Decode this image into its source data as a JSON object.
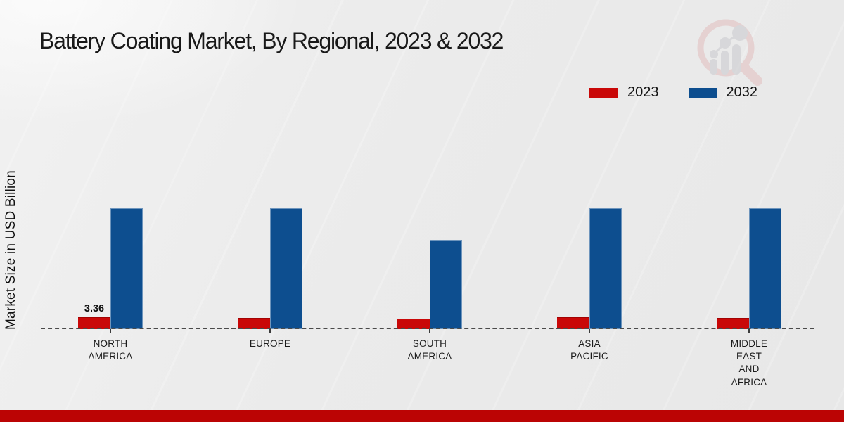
{
  "title": "Battery Coating Market, By Regional, 2023 & 2032",
  "chart_data": {
    "type": "bar",
    "title": "Battery Coating Market, By Regional, 2023 & 2032",
    "ylabel": "Market Size in USD Billion",
    "xlabel": "",
    "categories": [
      "NORTH AMERICA",
      "EUROPE",
      "SOUTH AMERICA",
      "ASIA PACIFIC",
      "MIDDLE EAST AND AFRICA"
    ],
    "category_lines": [
      [
        "NORTH",
        "AMERICA"
      ],
      [
        "EUROPE"
      ],
      [
        "SOUTH",
        "AMERICA"
      ],
      [
        "ASIA",
        "PACIFIC"
      ],
      [
        "MIDDLE",
        "EAST",
        "AND",
        "AFRICA"
      ]
    ],
    "series": [
      {
        "name": "2023",
        "color": "#c90808",
        "values": [
          3.36,
          3.3,
          3.1,
          3.35,
          3.3
        ]
      },
      {
        "name": "2032",
        "color": "#0d4e8f",
        "values": [
          34.4,
          34.4,
          25.4,
          34.4,
          34.4
        ]
      }
    ],
    "annotations": [
      {
        "category_index": 0,
        "series": "2023",
        "text": "3.36"
      }
    ],
    "legend_position": "top-right",
    "baseline_style": "dashed",
    "grid": false,
    "ylim": [
      0,
      36
    ]
  },
  "legend": {
    "items": [
      {
        "label": "2023",
        "color": "#c90808"
      },
      {
        "label": "2032",
        "color": "#0d4e8f"
      }
    ]
  },
  "icons": {
    "watermark": "magnifier-growth-chart-logo"
  },
  "colors": {
    "series_2023": "#c90808",
    "series_2032": "#0d4e8f",
    "background": "#ebebeb",
    "baseline": "#4a4a4a",
    "footer_bar": "#bb0404",
    "watermark_ring": "#e3c2c2",
    "watermark_bars": "#ccccd0"
  }
}
